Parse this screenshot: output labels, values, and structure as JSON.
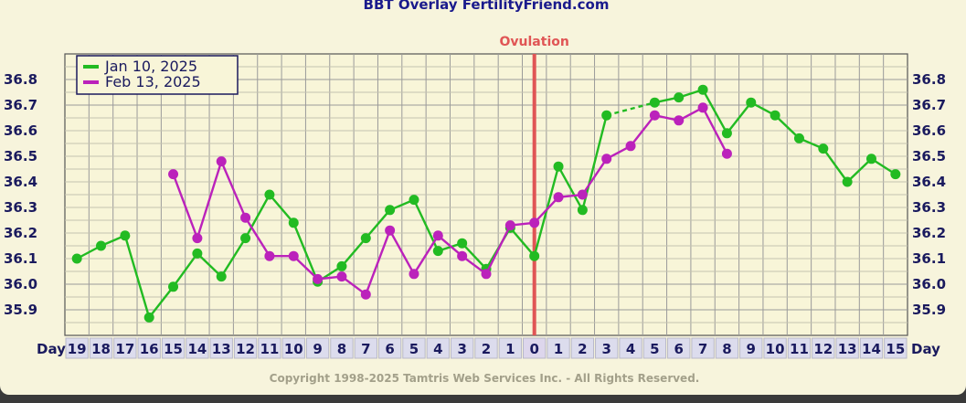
{
  "chart_data": {
    "type": "line",
    "title": "BBT Overlay FertilityFriend.com",
    "x_axis_label": "Day",
    "x_tick_labels": [
      "19",
      "18",
      "17",
      "16",
      "15",
      "14",
      "13",
      "12",
      "11",
      "10",
      "9",
      "8",
      "7",
      "6",
      "5",
      "4",
      "3",
      "2",
      "1",
      "0",
      "1",
      "2",
      "3",
      "4",
      "5",
      "6",
      "7",
      "8",
      "9",
      "10",
      "11",
      "12",
      "13",
      "14",
      "15"
    ],
    "y_ticks": [
      36.8,
      36.7,
      36.6,
      36.5,
      36.4,
      36.3,
      36.2,
      36.1,
      36.0,
      35.9
    ],
    "y_tick_labels": [
      "36.8",
      "36.7",
      "36.6",
      "36.5",
      "36.4",
      "36.3",
      "36.2",
      "36.1",
      "36.0",
      "35.9"
    ],
    "ylim": [
      35.8,
      36.9
    ],
    "grid": true,
    "legend_position": "top-left",
    "ovulation": {
      "label": "Ovulation",
      "day_index": 19,
      "color": "#e05555"
    },
    "series": [
      {
        "name": "Jan 10, 2025",
        "color": "#22bb22",
        "values": [
          36.1,
          36.15,
          36.19,
          35.87,
          35.99,
          36.12,
          36.03,
          36.18,
          36.35,
          36.24,
          36.01,
          36.07,
          36.18,
          36.29,
          36.33,
          36.13,
          36.16,
          36.06,
          36.22,
          36.11,
          36.46,
          36.29,
          36.66,
          null,
          36.71,
          36.73,
          36.76,
          36.59,
          36.71,
          36.66,
          36.57,
          36.53,
          36.4,
          36.49,
          36.43
        ]
      },
      {
        "name": "Feb 13, 2025",
        "color": "#bb22bb",
        "values": [
          null,
          null,
          null,
          null,
          36.43,
          36.18,
          36.48,
          36.26,
          36.11,
          36.11,
          36.02,
          36.03,
          35.96,
          36.21,
          36.04,
          36.19,
          36.11,
          36.04,
          36.23,
          36.24,
          36.34,
          36.35,
          36.49,
          36.54,
          36.66,
          36.64,
          36.69,
          36.51,
          null,
          null,
          null,
          null,
          null,
          null,
          null
        ]
      }
    ]
  },
  "footer": {
    "copyright": "Copyright 1998-2025 Tamtris Web Services Inc. - All Rights Reserved."
  }
}
